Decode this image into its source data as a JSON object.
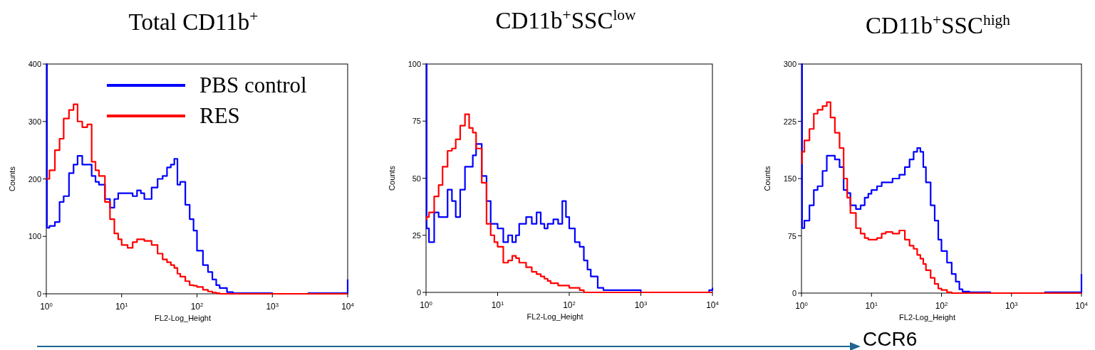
{
  "chart_data": [
    {
      "type": "step",
      "title": "Total CD11b$^{+}$",
      "xlabel": "FL2-Log_Height",
      "ylabel": "Counts",
      "log": "x",
      "legend": "top right",
      "x": [
        1,
        1.02,
        1.1,
        1.3,
        1.5,
        1.7,
        2,
        2.3,
        2.6,
        3,
        3.5,
        4,
        4.5,
        5,
        6,
        7,
        8,
        9,
        10,
        12,
        14,
        16,
        18,
        20,
        25,
        30,
        35,
        40,
        45,
        50,
        55,
        60,
        70,
        80,
        90,
        100,
        120,
        140,
        160,
        180,
        200,
        250,
        300,
        500,
        1000,
        3000,
        9000,
        10000
      ],
      "xlim": [
        1,
        10000
      ],
      "xticks": [
        {
          "value": 1,
          "label": "10$^{0}$"
        },
        {
          "value": 10,
          "label": "10$^{1}$"
        },
        {
          "value": 100,
          "label": "10$^{2}$"
        },
        {
          "value": 1000,
          "label": "10$^{3}$"
        },
        {
          "value": 10000,
          "label": "10$^{4}$"
        }
      ],
      "ylim": [
        0,
        400
      ],
      "yticks": [
        0,
        100,
        200,
        300,
        400
      ],
      "series": [
        {
          "name": "PBS control",
          "color": "#0000ff",
          "values": [
            400,
            115,
            118,
            125,
            160,
            170,
            210,
            225,
            240,
            225,
            225,
            205,
            195,
            190,
            165,
            150,
            165,
            175,
            175,
            175,
            170,
            180,
            175,
            165,
            185,
            200,
            205,
            220,
            225,
            235,
            190,
            195,
            155,
            130,
            110,
            75,
            50,
            38,
            25,
            15,
            10,
            3,
            1,
            1,
            0,
            1,
            1,
            25
          ]
        },
        {
          "name": "RES",
          "color": "#ff0000",
          "values": [
            200,
            200,
            215,
            250,
            270,
            305,
            320,
            330,
            300,
            290,
            295,
            230,
            215,
            205,
            160,
            130,
            105,
            95,
            85,
            80,
            90,
            95,
            95,
            92,
            85,
            70,
            60,
            55,
            50,
            45,
            35,
            30,
            22,
            15,
            14,
            12,
            7,
            4,
            2,
            1,
            0,
            0,
            0,
            0,
            0,
            0,
            0,
            0
          ]
        }
      ]
    },
    {
      "type": "step",
      "title": "CD11b$^{+}$SSC$^{low}$",
      "xlabel": "FL2-Log_Height",
      "ylabel": "Counts",
      "log": "x",
      "x": [
        1,
        1.02,
        1.1,
        1.3,
        1.5,
        1.7,
        2,
        2.3,
        2.6,
        3,
        3.5,
        4,
        4.5,
        5,
        6,
        7,
        8,
        9,
        10,
        12,
        14,
        16,
        18,
        20,
        25,
        30,
        35,
        40,
        45,
        50,
        55,
        60,
        70,
        80,
        90,
        100,
        120,
        140,
        160,
        180,
        200,
        250,
        300,
        500,
        1000,
        3000,
        9000,
        10000
      ],
      "xlim": [
        1,
        10000
      ],
      "xticks": [
        {
          "value": 1,
          "label": "10$^{0}$"
        },
        {
          "value": 10,
          "label": "10$^{1}$"
        },
        {
          "value": 100,
          "label": "10$^{2}$"
        },
        {
          "value": 1000,
          "label": "10$^{3}$"
        },
        {
          "value": 10000,
          "label": "10$^{4}$"
        }
      ],
      "ylim": [
        0,
        100
      ],
      "yticks": [
        0,
        25,
        50,
        75,
        100
      ],
      "series": [
        {
          "color": "#0000ff",
          "values": [
            100,
            28,
            22,
            35,
            33,
            33,
            45,
            40,
            33,
            45,
            55,
            55,
            60,
            65,
            51,
            40,
            30,
            30,
            28,
            22,
            25,
            22,
            25,
            30,
            33,
            30,
            35,
            30,
            28,
            30,
            30,
            32,
            30,
            40,
            33,
            28,
            22,
            20,
            14,
            10,
            7,
            2,
            1,
            1,
            0,
            0,
            1,
            2
          ]
        },
        {
          "color": "#ff0000",
          "values": [
            32,
            33,
            35,
            42,
            47,
            55,
            62,
            63,
            67,
            73,
            78,
            72,
            70,
            63,
            48,
            30,
            25,
            22,
            20,
            13,
            14,
            16,
            15,
            13,
            11,
            9,
            8,
            7,
            6,
            5,
            4,
            4,
            3,
            3,
            3,
            2,
            2,
            1,
            0,
            0,
            0,
            0,
            0,
            0,
            0,
            0,
            0,
            0
          ]
        }
      ]
    },
    {
      "type": "step",
      "title": "CD11b$^{+}$SSC$^{high}$",
      "xlabel": "FL2-Log_Height",
      "ylabel": "Counts",
      "log": "x",
      "annotations": [
        "CCR6"
      ],
      "x": [
        1,
        1.02,
        1.1,
        1.3,
        1.5,
        1.7,
        2,
        2.3,
        2.6,
        3,
        3.5,
        4,
        4.5,
        5,
        6,
        7,
        8,
        9,
        10,
        12,
        14,
        16,
        18,
        20,
        25,
        30,
        35,
        40,
        45,
        50,
        55,
        60,
        70,
        80,
        90,
        100,
        120,
        140,
        160,
        180,
        200,
        250,
        300,
        500,
        1000,
        3000,
        9000,
        10000
      ],
      "xlim": [
        1,
        10000
      ],
      "xticks": [
        {
          "value": 1,
          "label": "10$^{0}$"
        },
        {
          "value": 10,
          "label": "10$^{1}$"
        },
        {
          "value": 100,
          "label": "10$^{2}$"
        },
        {
          "value": 1000,
          "label": "10$^{3}$"
        },
        {
          "value": 10000,
          "label": "10$^{4}$"
        }
      ],
      "ylim": [
        0,
        300
      ],
      "yticks": [
        0,
        75,
        150,
        225,
        300
      ],
      "series": [
        {
          "color": "#0000ff",
          "values": [
            300,
            85,
            95,
            115,
            135,
            140,
            160,
            180,
            180,
            175,
            165,
            135,
            131,
            115,
            110,
            115,
            125,
            130,
            135,
            140,
            145,
            145,
            145,
            150,
            155,
            165,
            175,
            185,
            190,
            185,
            165,
            145,
            115,
            95,
            70,
            55,
            40,
            25,
            15,
            5,
            2,
            1,
            1,
            0,
            0,
            1,
            1,
            25
          ]
        },
        {
          "color": "#ff0000",
          "values": [
            170,
            185,
            200,
            215,
            235,
            240,
            245,
            250,
            230,
            210,
            190,
            150,
            125,
            105,
            85,
            78,
            72,
            70,
            70,
            72,
            78,
            80,
            80,
            78,
            82,
            70,
            62,
            58,
            50,
            45,
            38,
            30,
            20,
            12,
            6,
            4,
            1,
            0,
            0,
            0,
            0,
            0,
            0,
            0,
            0,
            0,
            0,
            0
          ]
        }
      ]
    }
  ]
}
